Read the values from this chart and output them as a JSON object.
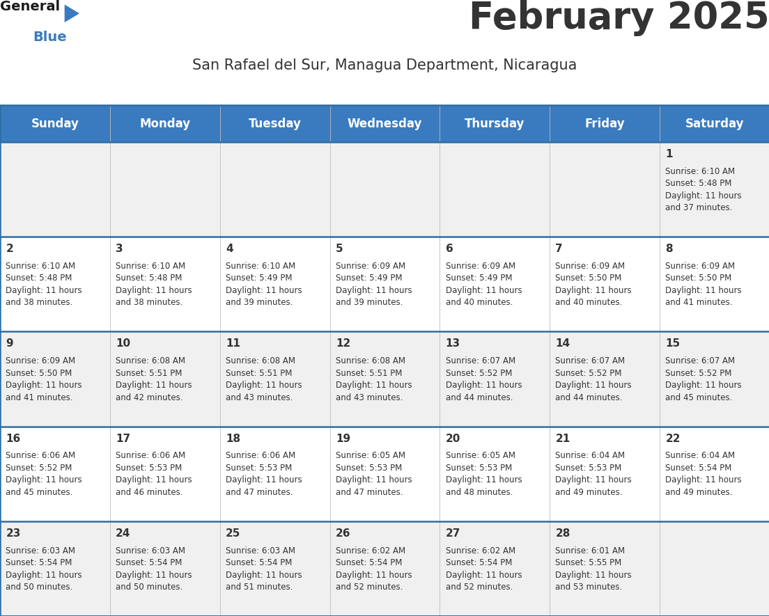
{
  "title": "February 2025",
  "subtitle": "San Rafael del Sur, Managua Department, Nicaragua",
  "header_color": "#3a7bbf",
  "header_text_color": "#ffffff",
  "bg_color_odd": "#f0f0f0",
  "bg_color_even": "#ffffff",
  "separator_color": "#2e6da4",
  "text_color": "#333333",
  "days_of_week": [
    "Sunday",
    "Monday",
    "Tuesday",
    "Wednesday",
    "Thursday",
    "Friday",
    "Saturday"
  ],
  "weeks": [
    [
      {
        "day": null,
        "info": null
      },
      {
        "day": null,
        "info": null
      },
      {
        "day": null,
        "info": null
      },
      {
        "day": null,
        "info": null
      },
      {
        "day": null,
        "info": null
      },
      {
        "day": null,
        "info": null
      },
      {
        "day": 1,
        "info": "Sunrise: 6:10 AM\nSunset: 5:48 PM\nDaylight: 11 hours\nand 37 minutes."
      }
    ],
    [
      {
        "day": 2,
        "info": "Sunrise: 6:10 AM\nSunset: 5:48 PM\nDaylight: 11 hours\nand 38 minutes."
      },
      {
        "day": 3,
        "info": "Sunrise: 6:10 AM\nSunset: 5:48 PM\nDaylight: 11 hours\nand 38 minutes."
      },
      {
        "day": 4,
        "info": "Sunrise: 6:10 AM\nSunset: 5:49 PM\nDaylight: 11 hours\nand 39 minutes."
      },
      {
        "day": 5,
        "info": "Sunrise: 6:09 AM\nSunset: 5:49 PM\nDaylight: 11 hours\nand 39 minutes."
      },
      {
        "day": 6,
        "info": "Sunrise: 6:09 AM\nSunset: 5:49 PM\nDaylight: 11 hours\nand 40 minutes."
      },
      {
        "day": 7,
        "info": "Sunrise: 6:09 AM\nSunset: 5:50 PM\nDaylight: 11 hours\nand 40 minutes."
      },
      {
        "day": 8,
        "info": "Sunrise: 6:09 AM\nSunset: 5:50 PM\nDaylight: 11 hours\nand 41 minutes."
      }
    ],
    [
      {
        "day": 9,
        "info": "Sunrise: 6:09 AM\nSunset: 5:50 PM\nDaylight: 11 hours\nand 41 minutes."
      },
      {
        "day": 10,
        "info": "Sunrise: 6:08 AM\nSunset: 5:51 PM\nDaylight: 11 hours\nand 42 minutes."
      },
      {
        "day": 11,
        "info": "Sunrise: 6:08 AM\nSunset: 5:51 PM\nDaylight: 11 hours\nand 43 minutes."
      },
      {
        "day": 12,
        "info": "Sunrise: 6:08 AM\nSunset: 5:51 PM\nDaylight: 11 hours\nand 43 minutes."
      },
      {
        "day": 13,
        "info": "Sunrise: 6:07 AM\nSunset: 5:52 PM\nDaylight: 11 hours\nand 44 minutes."
      },
      {
        "day": 14,
        "info": "Sunrise: 6:07 AM\nSunset: 5:52 PM\nDaylight: 11 hours\nand 44 minutes."
      },
      {
        "day": 15,
        "info": "Sunrise: 6:07 AM\nSunset: 5:52 PM\nDaylight: 11 hours\nand 45 minutes."
      }
    ],
    [
      {
        "day": 16,
        "info": "Sunrise: 6:06 AM\nSunset: 5:52 PM\nDaylight: 11 hours\nand 45 minutes."
      },
      {
        "day": 17,
        "info": "Sunrise: 6:06 AM\nSunset: 5:53 PM\nDaylight: 11 hours\nand 46 minutes."
      },
      {
        "day": 18,
        "info": "Sunrise: 6:06 AM\nSunset: 5:53 PM\nDaylight: 11 hours\nand 47 minutes."
      },
      {
        "day": 19,
        "info": "Sunrise: 6:05 AM\nSunset: 5:53 PM\nDaylight: 11 hours\nand 47 minutes."
      },
      {
        "day": 20,
        "info": "Sunrise: 6:05 AM\nSunset: 5:53 PM\nDaylight: 11 hours\nand 48 minutes."
      },
      {
        "day": 21,
        "info": "Sunrise: 6:04 AM\nSunset: 5:53 PM\nDaylight: 11 hours\nand 49 minutes."
      },
      {
        "day": 22,
        "info": "Sunrise: 6:04 AM\nSunset: 5:54 PM\nDaylight: 11 hours\nand 49 minutes."
      }
    ],
    [
      {
        "day": 23,
        "info": "Sunrise: 6:03 AM\nSunset: 5:54 PM\nDaylight: 11 hours\nand 50 minutes."
      },
      {
        "day": 24,
        "info": "Sunrise: 6:03 AM\nSunset: 5:54 PM\nDaylight: 11 hours\nand 50 minutes."
      },
      {
        "day": 25,
        "info": "Sunrise: 6:03 AM\nSunset: 5:54 PM\nDaylight: 11 hours\nand 51 minutes."
      },
      {
        "day": 26,
        "info": "Sunrise: 6:02 AM\nSunset: 5:54 PM\nDaylight: 11 hours\nand 52 minutes."
      },
      {
        "day": 27,
        "info": "Sunrise: 6:02 AM\nSunset: 5:54 PM\nDaylight: 11 hours\nand 52 minutes."
      },
      {
        "day": 28,
        "info": "Sunrise: 6:01 AM\nSunset: 5:55 PM\nDaylight: 11 hours\nand 53 minutes."
      },
      {
        "day": null,
        "info": null
      }
    ]
  ],
  "logo_general_color": "#1a1a1a",
  "logo_blue_color": "#3a7bbf",
  "title_fontsize": 38,
  "subtitle_fontsize": 15,
  "header_fontsize": 12,
  "day_num_fontsize": 11,
  "info_fontsize": 8.5
}
